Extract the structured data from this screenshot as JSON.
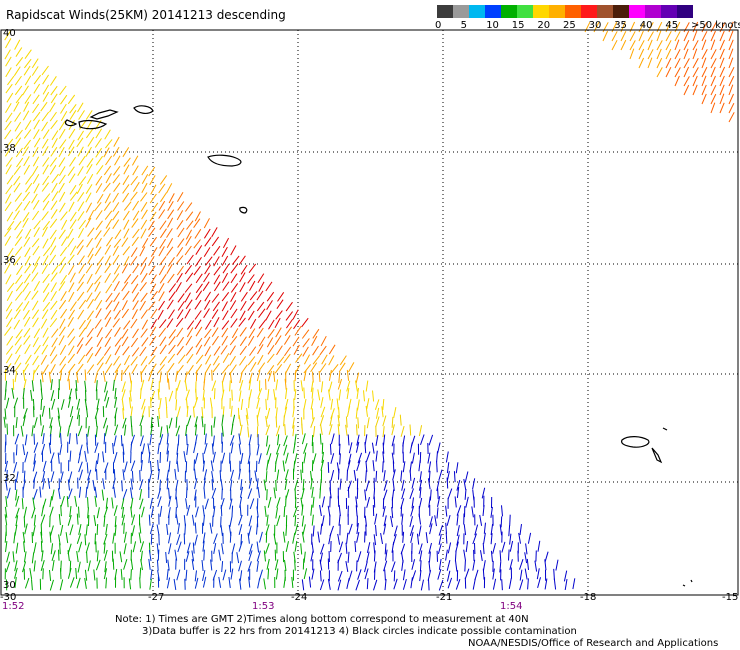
{
  "header": {
    "title": "Rapidscat Winds(25KM) 20141213 descending"
  },
  "legend": {
    "colors": [
      "#3c3c3c",
      "#9a9a9a",
      "#00b8f0",
      "#0040ff",
      "#00b000",
      "#40e040",
      "#ffd700",
      "#ffb000",
      "#ff6000",
      "#ff1a1a",
      "#a0522d",
      "#4b1e0a",
      "#ff00ff",
      "#b000d0",
      "#6400b4",
      "#300080"
    ],
    "labels": [
      "0",
      "5",
      "10",
      "15",
      "20",
      "25",
      "30",
      "35",
      "40",
      "45",
      ">50 knots"
    ]
  },
  "map": {
    "lat_labels": [
      "40",
      "38",
      "36",
      "34",
      "32",
      "30"
    ],
    "lon_labels": [
      "-30",
      "-27",
      "-24",
      "-21",
      "-18",
      "-15"
    ],
    "time_labels": [
      "1:52",
      "1:53",
      "1:54"
    ],
    "time_color": "#800080"
  },
  "notes": {
    "line1": "Note: 1) Times are GMT 2)Times along bottom correspond to measurement at 40N",
    "line2": "3)Data buffer is 22 hrs from 20141213 4) Black circles indicate possible contamination",
    "line3": "NOAA/NESDIS/Office of Research and Applications"
  }
}
